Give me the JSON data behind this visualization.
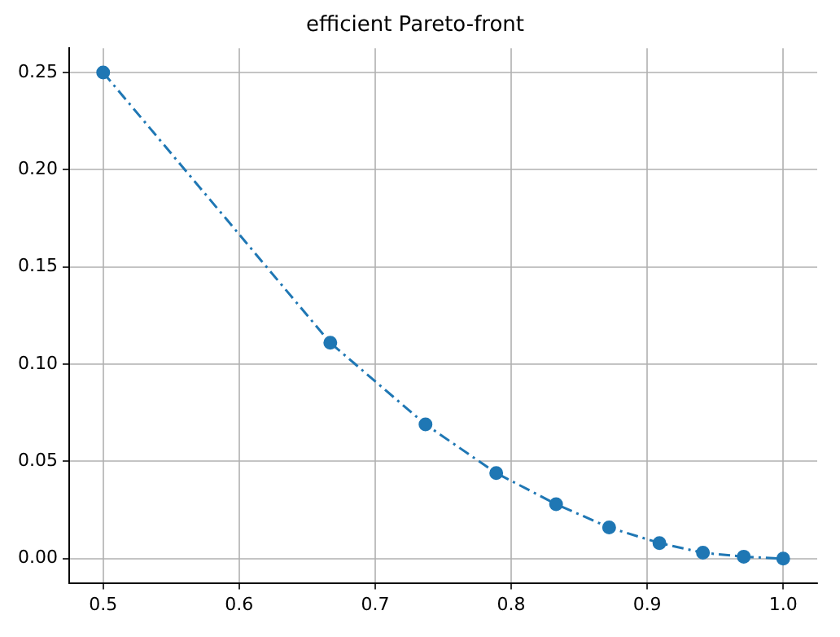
{
  "chart_data": {
    "type": "line",
    "title": "efficient Pareto-front",
    "x": [
      0.5,
      0.667,
      0.737,
      0.789,
      0.833,
      0.872,
      0.909,
      0.941,
      0.971,
      1.0
    ],
    "series": [
      {
        "color": "#1f77b4",
        "values": [
          0.25,
          0.111,
          0.069,
          0.044,
          0.028,
          0.016,
          0.008,
          0.003,
          0.001,
          0.0
        ]
      }
    ],
    "xlim": [
      0.475,
      1.025
    ],
    "xticks": [
      0.5,
      0.6,
      0.7,
      0.8,
      0.9,
      {
        "value": 1.0,
        "label": "1.0"
      }
    ],
    "ylim": [
      -0.0125,
      0.2625
    ],
    "yticks": [
      {
        "value": 0.0,
        "label": "0.00"
      },
      0.05,
      {
        "value": 0.1,
        "label": "0.10"
      },
      0.15,
      {
        "value": 0.2,
        "label": "0.20"
      },
      0.25
    ],
    "grid": true,
    "marker": "circle",
    "line_style": "dashed",
    "legend": false
  }
}
